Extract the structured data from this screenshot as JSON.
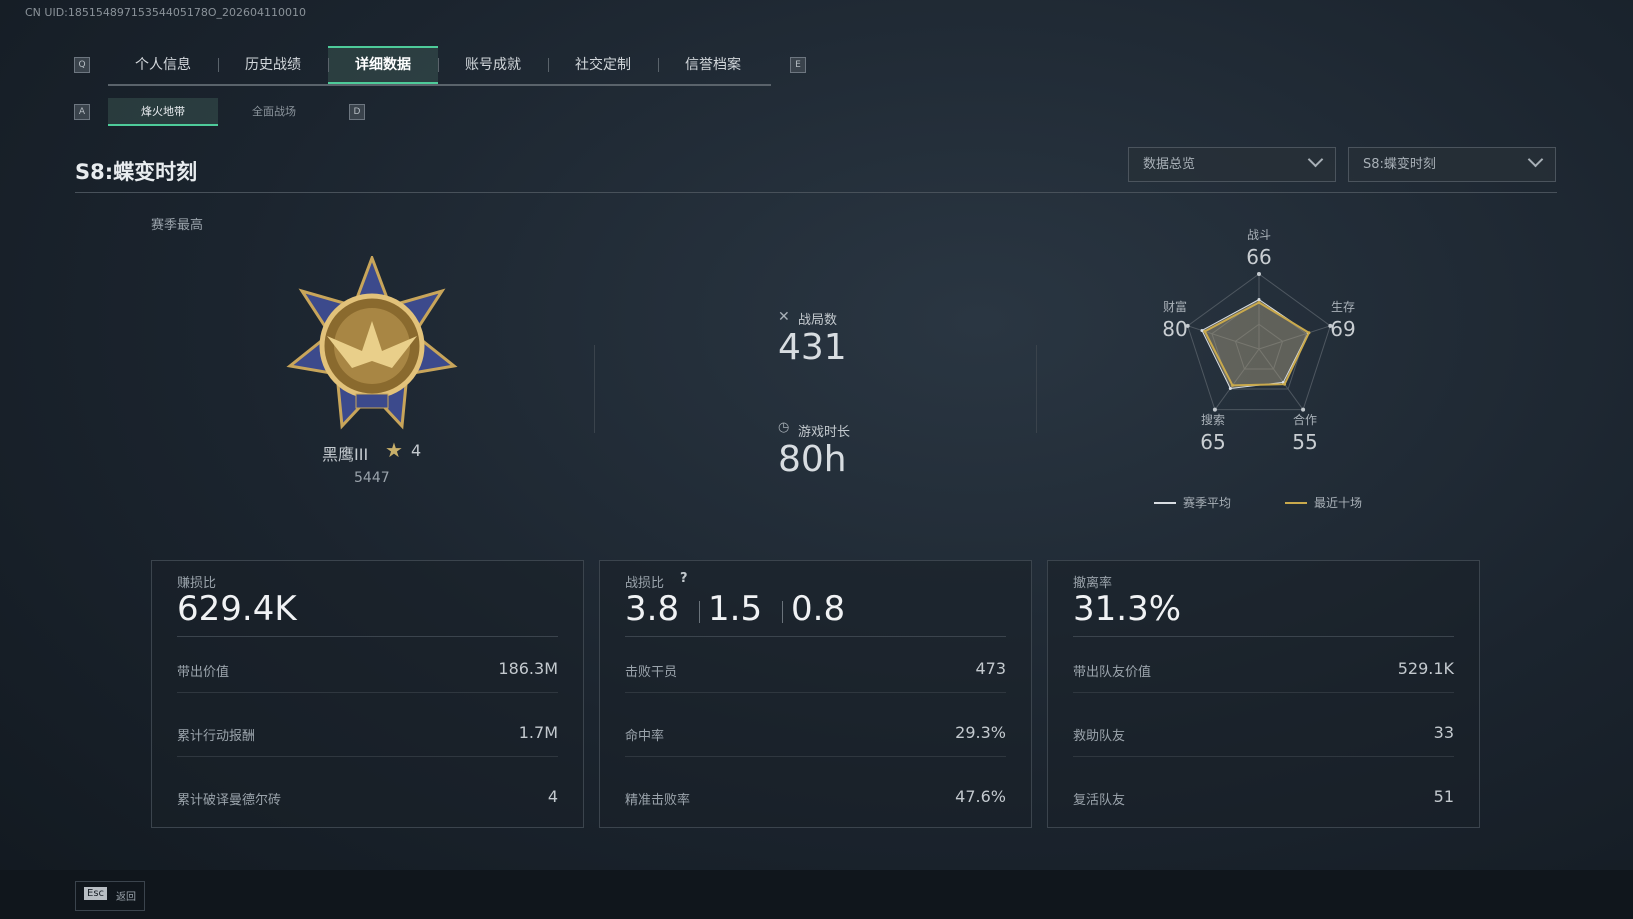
{
  "uid": "CN UID:18515489715354405178O_202604110010",
  "tab_keys": [
    "Q",
    "E"
  ],
  "tabs": [
    {
      "label": "个人信息"
    },
    {
      "label": "历史战绩"
    },
    {
      "label": "详细数据",
      "active": true
    },
    {
      "label": "账号成就"
    },
    {
      "label": "社交定制"
    },
    {
      "label": "信誉档案"
    }
  ],
  "subtab_keys": [
    "A",
    "D"
  ],
  "subtabs": [
    {
      "label": "烽火地带",
      "active": true
    },
    {
      "label": "全面战场"
    }
  ],
  "season_title": "S8:蝶变时刻",
  "dropdowns": [
    "数据总览",
    "S8:蝶变时刻"
  ],
  "rank": {
    "caption": "赛季最高",
    "name": "黑鹰III",
    "stars": 4,
    "score": 5447
  },
  "summary": [
    {
      "label": "战局数",
      "value": 431
    },
    {
      "label": "游戏时长",
      "value": "80h"
    }
  ],
  "radar": {
    "axes": [
      "战斗",
      "生存",
      "合作",
      "搜索",
      "财富"
    ],
    "rlim": [
      0,
      100
    ],
    "series": [
      {
        "name": "赛季平均",
        "color": "#d8dde2",
        "values": [
          66,
          69,
          55,
          65,
          80
        ]
      },
      {
        "name": "最近十场",
        "color": "#c9a94c",
        "values": [
          62,
          70,
          58,
          60,
          76
        ]
      }
    ]
  },
  "cards": [
    {
      "label": "赚损比",
      "value": "629.4K",
      "rows": [
        [
          "带出价值",
          "186.3M"
        ],
        [
          "累计行动报酬",
          "1.7M"
        ],
        [
          "累计破译曼德尔砖",
          4
        ]
      ]
    },
    {
      "label": "战损比",
      "help": "?",
      "values": [
        3.8,
        1.5,
        0.8
      ],
      "rows": [
        [
          "击败干员",
          473
        ],
        [
          "命中率",
          "29.3%"
        ],
        [
          "精准击败率",
          "47.6%"
        ]
      ]
    },
    {
      "label": "撤离率",
      "value": "31.3%",
      "rows": [
        [
          "带出队友价值",
          "529.1K"
        ],
        [
          "救助队友",
          33
        ],
        [
          "复活队友",
          51
        ]
      ]
    }
  ],
  "footer": {
    "key": "Esc",
    "label": "返回"
  }
}
